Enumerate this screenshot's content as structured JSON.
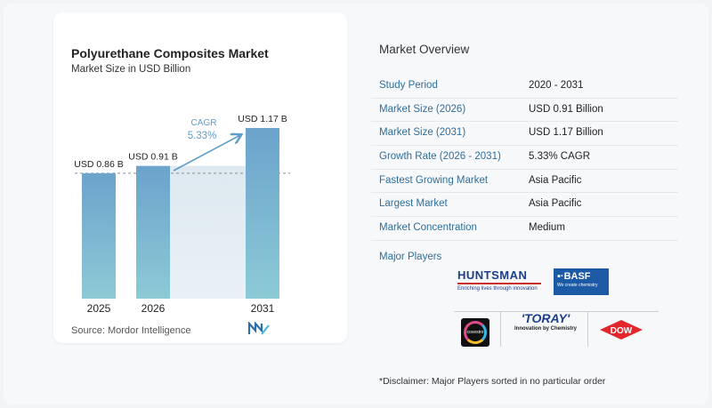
{
  "chart": {
    "title": "Polyurethane Composites Market",
    "subtitle": "Market Size in USD Billion",
    "source": "Source:  Mordor Intelligence",
    "cagr_label": "CAGR",
    "cagr_value": "5.33%"
  },
  "chart_data": {
    "type": "bar",
    "title": "Polyurethane Composites Market",
    "subtitle": "Market Size in USD Billion",
    "categories": [
      "2025",
      "2026",
      "2031"
    ],
    "values": [
      0.86,
      0.91,
      1.17
    ],
    "data_labels": [
      "USD 0.86 B",
      "USD 0.91 B",
      "USD 1.17 B"
    ],
    "ylim": [
      0,
      1.17
    ],
    "grid": false,
    "annotations": [
      {
        "text": "CAGR 5.33%",
        "from": "2026",
        "to": "2031"
      }
    ]
  },
  "overview": {
    "title": "Market Overview",
    "rows": [
      {
        "label": "Study Period",
        "value": "2020 - 2031"
      },
      {
        "label": "Market Size (2026)",
        "value": "USD 0.91 Billion"
      },
      {
        "label": "Market Size (2031)",
        "value": "USD 1.17 Billion"
      },
      {
        "label": "Growth Rate (2026 - 2031)",
        "value": "5.33% CAGR"
      },
      {
        "label": "Fastest Growing Market",
        "value": "Asia Pacific"
      },
      {
        "label": "Largest Market",
        "value": "Asia Pacific"
      },
      {
        "label": "Market Concentration",
        "value": "Medium"
      }
    ],
    "players_label": "Major Players",
    "players": [
      {
        "name": "HUNTSMAN",
        "tagline": "Enriching lives through innovation"
      },
      {
        "name": "BASF",
        "tagline": "We create chemistry"
      },
      {
        "name": "covestro"
      },
      {
        "name": "TORAY",
        "tagline": "Innovation by Chemistry"
      },
      {
        "name": "DOW"
      }
    ],
    "disclaimer": "*Disclaimer: Major Players sorted in no particular order"
  },
  "colors": {
    "bar_top": "#6ba3cc",
    "bar_bottom": "#8ccad6",
    "label_blue": "#2f6e9a",
    "cagr_blue": "#5f9cc8"
  }
}
